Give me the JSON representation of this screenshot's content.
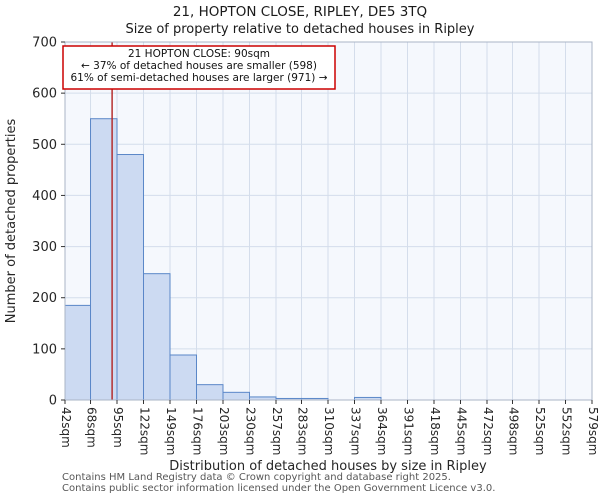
{
  "chart_data": {
    "type": "bar",
    "title": "21, HOPTON CLOSE, RIPLEY, DE5 3TQ",
    "subtitle": "Size of property relative to detached houses in Ripley",
    "xlabel": "Distribution of detached houses by size in Ripley",
    "ylabel": "Number of detached properties",
    "ylim": [
      0,
      700
    ],
    "y_ticks": [
      0,
      100,
      200,
      300,
      400,
      500,
      600,
      700
    ],
    "grid": true,
    "bin_edges_sqm": [
      42,
      68,
      95,
      122,
      149,
      176,
      203,
      230,
      257,
      283,
      310,
      337,
      364,
      391,
      418,
      445,
      472,
      498,
      525,
      552,
      579
    ],
    "x_tick_labels": [
      "42sqm",
      "68sqm",
      "95sqm",
      "122sqm",
      "149sqm",
      "176sqm",
      "203sqm",
      "230sqm",
      "257sqm",
      "283sqm",
      "310sqm",
      "337sqm",
      "364sqm",
      "391sqm",
      "418sqm",
      "445sqm",
      "472sqm",
      "498sqm",
      "525sqm",
      "552sqm",
      "579sqm"
    ],
    "values": [
      185,
      550,
      480,
      247,
      88,
      30,
      15,
      6,
      3,
      3,
      0,
      5,
      0,
      0,
      0,
      0,
      0,
      0,
      0,
      0
    ],
    "marker": {
      "label": "21 HOPTON CLOSE",
      "value_sqm": 90,
      "color": "#b22222"
    },
    "annotation": {
      "line1": "21 HOPTON CLOSE: 90sqm",
      "line2": "← 37% of detached houses are smaller (598)",
      "line3": "61% of semi-detached houses are larger (971) →",
      "border_color": "#cc0000"
    },
    "colors": {
      "bar_fill": "#ccdaf2",
      "bar_stroke": "#5a87c8",
      "grid": "#d4ddeb",
      "plot_bg": "#f5f8fd",
      "spine": "#aab4c6"
    }
  },
  "footer": {
    "line1": "Contains HM Land Registry data © Crown copyright and database right 2025.",
    "line2": "Contains public sector information licensed under the Open Government Licence v3.0."
  }
}
